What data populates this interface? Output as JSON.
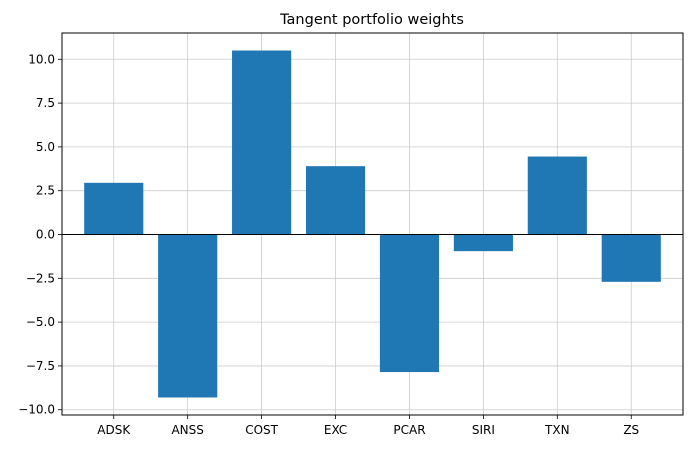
{
  "chart_data": {
    "type": "bar",
    "title": "Tangent portfolio weights",
    "xlabel": "",
    "ylabel": "",
    "categories": [
      "ADSK",
      "ANSS",
      "COST",
      "EXC",
      "PCAR",
      "SIRI",
      "TXN",
      "ZS"
    ],
    "values": [
      2.95,
      -9.3,
      10.5,
      3.9,
      -7.85,
      -0.95,
      4.45,
      -2.7
    ],
    "ylim": [
      -10.3,
      11.5
    ],
    "yticks": [
      10.0,
      7.5,
      5.0,
      2.5,
      0.0,
      -2.5,
      -5.0,
      -7.5,
      -10.0
    ],
    "ytick_labels": [
      "10.0",
      "7.5",
      "5.0",
      "2.5",
      "0.0",
      "−2.5",
      "−5.0",
      "−7.5",
      "−10.0"
    ],
    "grid": true,
    "zero_line": true,
    "colors": {
      "bar": "#1f77b4",
      "grid": "#cccccc",
      "axis": "#000000"
    }
  }
}
